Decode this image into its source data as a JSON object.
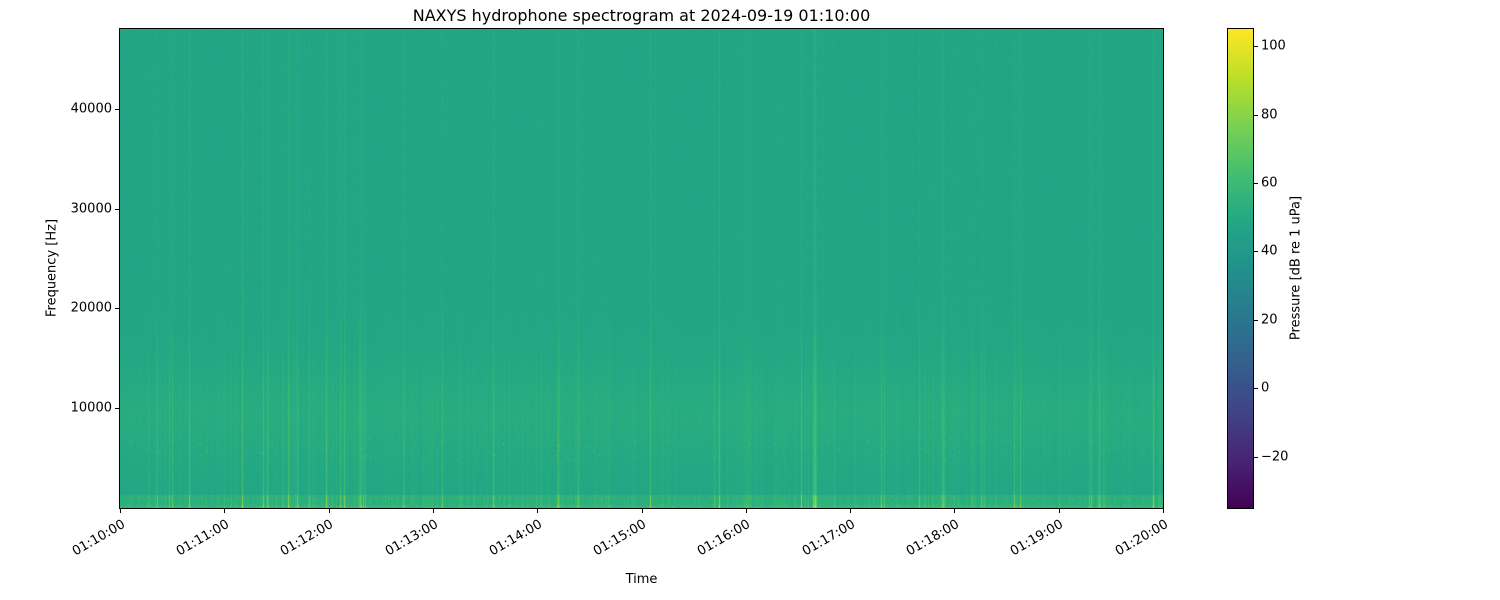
{
  "chart_data": {
    "type": "heatmap",
    "title": "NAXYS hydrophone spectrogram at 2024-09-19 01:10:00",
    "xlabel": "Time",
    "ylabel": "Frequency [Hz]",
    "x_ticks": [
      "01:10:00",
      "01:11:00",
      "01:12:00",
      "01:13:00",
      "01:14:00",
      "01:15:00",
      "01:16:00",
      "01:17:00",
      "01:18:00",
      "01:19:00",
      "01:20:00"
    ],
    "y_ticks": [
      10000,
      20000,
      30000,
      40000
    ],
    "ylim": [
      0,
      48000
    ],
    "xlim_label_range": [
      "01:10:00",
      "01:20:00"
    ],
    "colormap": "viridis",
    "grid": false,
    "legend": "colorbar-right",
    "colorbar": {
      "label": "Pressure [dB re 1 uPa]",
      "ticks": [
        100,
        80,
        60,
        40,
        20,
        0,
        -20
      ],
      "range": [
        -35,
        105
      ]
    },
    "background_db": 47.3,
    "low_band": {
      "center_hz": 9500,
      "width_hz": 5200,
      "boost_db": 3.5
    },
    "dot_band": {
      "min_hz": 4600,
      "max_hz": 6900
    },
    "bottom_band": {
      "max_hz": 1300,
      "boost_db": 4
    },
    "transient_events": [
      {
        "time_frac": 0.23,
        "boost_db": 12
      },
      {
        "time_frac": 0.42,
        "boost_db": 10
      },
      {
        "time_frac": 0.667,
        "boost_db": 16
      },
      {
        "time_frac": 0.79,
        "boost_db": 12
      },
      {
        "time_frac": 0.94,
        "boost_db": 10
      }
    ],
    "noise_seed": 20240919,
    "viridis_stops": [
      [
        68,
        1,
        84
      ],
      [
        72,
        36,
        117
      ],
      [
        64,
        67,
        135
      ],
      [
        52,
        95,
        141
      ],
      [
        42,
        120,
        142
      ],
      [
        33,
        145,
        140
      ],
      [
        34,
        168,
        132
      ],
      [
        68,
        191,
        112
      ],
      [
        122,
        209,
        81
      ],
      [
        189,
        223,
        38
      ],
      [
        253,
        231,
        37
      ]
    ]
  }
}
